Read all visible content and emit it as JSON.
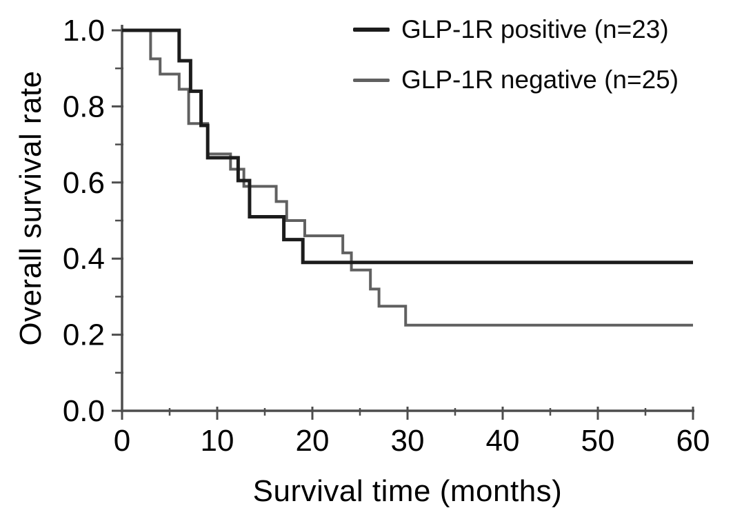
{
  "figure": {
    "background_color": "#ffffff",
    "title": ""
  },
  "chart_data": {
    "type": "line",
    "subtype": "kaplan-meier-step-curve",
    "title": "",
    "xlabel": "Survival time (months)",
    "ylabel": "Overall survival rate",
    "xlim": [
      0,
      60
    ],
    "ylim": [
      0.0,
      1.0
    ],
    "grid": false,
    "legend_position": "top-right-inside",
    "x_ticks": {
      "values": [
        0,
        10,
        20,
        30,
        40,
        50,
        60
      ],
      "labels": [
        "0",
        "10",
        "20",
        "30",
        "40",
        "50",
        "60"
      ],
      "minor": [
        5,
        15,
        25,
        35,
        45,
        55
      ]
    },
    "y_ticks": {
      "values": [
        1.0,
        0.8,
        0.6,
        0.4,
        0.2,
        0.0
      ],
      "labels": [
        "1.0",
        "0.8",
        "0.6",
        "0.4",
        "0.2",
        "0.0"
      ],
      "minor": [
        0.9,
        0.7,
        0.5,
        0.3,
        0.1
      ]
    },
    "axis_color": "#4d4d4d",
    "series": [
      {
        "id": "glp1r-positive",
        "name": "GLP-1R positive (n=23)",
        "color": "#1c1c1c",
        "line_width": 5,
        "steps": [
          [
            0,
            1.0
          ],
          [
            6.0,
            0.92
          ],
          [
            7.2,
            0.84
          ],
          [
            8.3,
            0.75
          ],
          [
            9.0,
            0.665
          ],
          [
            12.2,
            0.605
          ],
          [
            13.4,
            0.51
          ],
          [
            17.0,
            0.45
          ],
          [
            19.0,
            0.39
          ]
        ],
        "end_time": 60,
        "final_rate": 0.39
      },
      {
        "id": "glp1r-negative",
        "name": "GLP-1R negative (n=25)",
        "color": "#606060",
        "line_width": 4,
        "steps": [
          [
            0,
            1.0
          ],
          [
            3.0,
            0.925
          ],
          [
            4.0,
            0.885
          ],
          [
            6.0,
            0.845
          ],
          [
            7.0,
            0.755
          ],
          [
            9.0,
            0.675
          ],
          [
            11.4,
            0.635
          ],
          [
            12.8,
            0.59
          ],
          [
            16.2,
            0.55
          ],
          [
            17.3,
            0.5
          ],
          [
            19.2,
            0.46
          ],
          [
            23.2,
            0.415
          ],
          [
            24.1,
            0.37
          ],
          [
            26.1,
            0.32
          ],
          [
            27.0,
            0.275
          ],
          [
            29.8,
            0.225
          ]
        ],
        "end_time": 60,
        "final_rate": 0.225
      }
    ]
  }
}
